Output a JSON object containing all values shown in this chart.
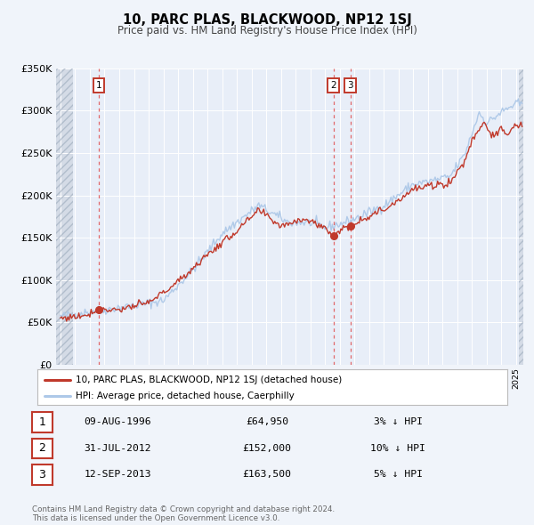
{
  "title": "10, PARC PLAS, BLACKWOOD, NP12 1SJ",
  "subtitle": "Price paid vs. HM Land Registry's House Price Index (HPI)",
  "legend_line1": "10, PARC PLAS, BLACKWOOD, NP12 1SJ (detached house)",
  "legend_line2": "HPI: Average price, detached house, Caerphilly",
  "transactions": [
    {
      "num": "1",
      "date": "09-AUG-1996",
      "price": "£64,950",
      "pct": "3% ↓ HPI",
      "year": 1996.6,
      "value": 64950
    },
    {
      "num": "2",
      "date": "31-JUL-2012",
      "price": "£152,000",
      "pct": "10% ↓ HPI",
      "year": 2012.58,
      "value": 152000
    },
    {
      "num": "3",
      "date": "12-SEP-2013",
      "price": "£163,500",
      "pct": "5% ↓ HPI",
      "year": 2013.72,
      "value": 163500
    }
  ],
  "hpi_color": "#adc8e8",
  "price_color": "#c0392b",
  "vline_color": "#e05050",
  "bg_color": "#f0f4fa",
  "plot_bg": "#e8eef8",
  "grid_color": "#ffffff",
  "hatch_color": "#c5cdd8",
  "ylim": [
    0,
    350000
  ],
  "yticks": [
    0,
    50000,
    100000,
    150000,
    200000,
    250000,
    300000,
    350000
  ],
  "xlim_start": 1993.7,
  "xlim_end": 2025.5,
  "hatch_end": 1994.83,
  "footer": "Contains HM Land Registry data © Crown copyright and database right 2024.\nThis data is licensed under the Open Government Licence v3.0."
}
